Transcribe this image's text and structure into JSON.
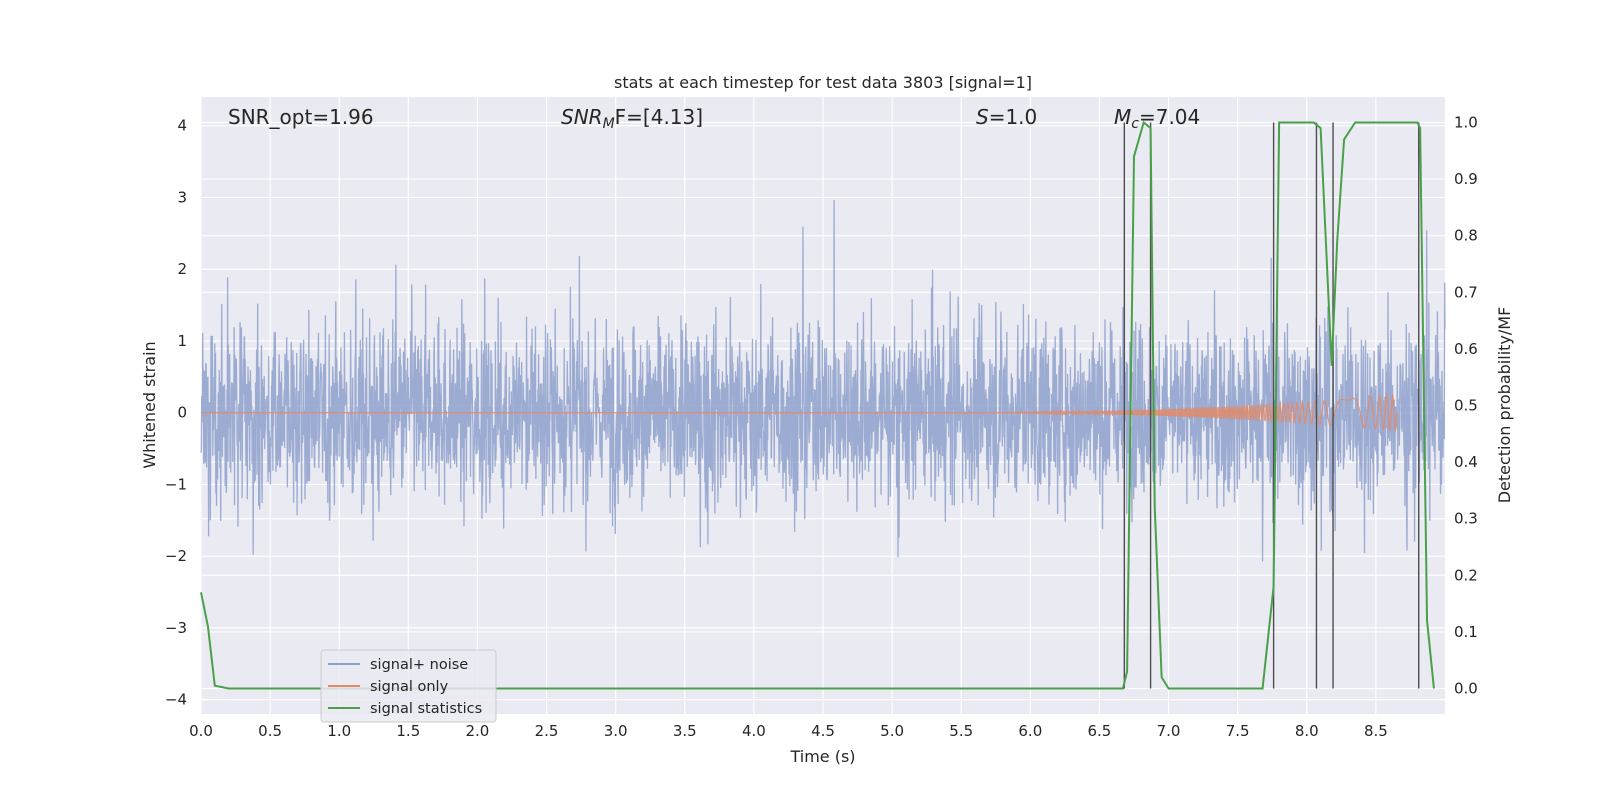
{
  "chart_data": {
    "type": "line",
    "title": "stats at each timestep for test data 3803 [signal=1]",
    "xlabel": "Time (s)",
    "ylabel_left": "Whitened strain",
    "ylabel_right": "Detection probability/MF",
    "xlim": [
      0.0,
      9.0
    ],
    "ylim_left": [
      -4.2,
      4.4
    ],
    "ylim_right": [
      -0.045,
      1.045
    ],
    "x_ticks": [
      "0.0",
      "0.5",
      "1.0",
      "1.5",
      "2.0",
      "2.5",
      "3.0",
      "3.5",
      "4.0",
      "4.5",
      "5.0",
      "5.5",
      "6.0",
      "6.5",
      "7.0",
      "7.5",
      "8.0",
      "8.5"
    ],
    "x_tick_values": [
      0.0,
      0.5,
      1.0,
      1.5,
      2.0,
      2.5,
      3.0,
      3.5,
      4.0,
      4.5,
      5.0,
      5.5,
      6.0,
      6.5,
      7.0,
      7.5,
      8.0,
      8.5
    ],
    "y_left_ticks": [
      "4",
      "3",
      "2",
      "1",
      "0",
      "−1",
      "−2",
      "−3",
      "−4"
    ],
    "y_left_tick_values": [
      4,
      3,
      2,
      1,
      0,
      -1,
      -2,
      -3,
      -4
    ],
    "y_right_ticks": [
      "1.0",
      "0.9",
      "0.8",
      "0.7",
      "0.6",
      "0.5",
      "0.4",
      "0.3",
      "0.2",
      "0.1",
      "0.0"
    ],
    "y_right_tick_values": [
      1.0,
      0.9,
      0.8,
      0.7,
      0.6,
      0.5,
      0.4,
      0.3,
      0.2,
      0.1,
      0.0
    ],
    "grid": true,
    "legend_position": "lower-left",
    "annotations": {
      "snr_opt": "SNR_opt=1.96",
      "snr_mf_base": "SNR",
      "snr_mf_sub": "M",
      "snr_mf_rest": "F=[4.13]",
      "s_italic": "S",
      "s_rest": "=1.0",
      "mc_italic": "M",
      "mc_sub": "c",
      "mc_rest": "=7.04"
    },
    "series": [
      {
        "name": "signal+ noise",
        "color": "#8da0cb",
        "axis": "left",
        "description": "whitened strain noise, amplitude envelope roughly ±1.7 with spikes to ±3.5"
      },
      {
        "name": "signal only",
        "color": "#e08a6a",
        "axis": "left",
        "chirp": {
          "start": 5.5,
          "end": 8.65,
          "max_amplitude": 0.25
        }
      },
      {
        "name": "signal statistics",
        "color": "#4aa04a",
        "axis": "right",
        "x": [
          0.0,
          0.05,
          0.1,
          0.2,
          1.0,
          2.0,
          3.0,
          4.0,
          5.0,
          5.5,
          6.0,
          6.5,
          6.67,
          6.7,
          6.75,
          6.82,
          6.87,
          6.9,
          6.95,
          7.0,
          7.5,
          7.68,
          7.76,
          7.8,
          8.0,
          8.05,
          8.1,
          8.18,
          8.22,
          8.27,
          8.35,
          8.5,
          8.7,
          8.8,
          8.82,
          8.87,
          8.92
        ],
        "y": [
          0.17,
          0.11,
          0.005,
          0.0,
          0.0,
          0.0,
          0.0,
          0.0,
          0.0,
          0.0,
          0.0,
          0.0,
          0.0,
          0.03,
          0.94,
          1.0,
          0.99,
          0.32,
          0.02,
          0.0,
          0.0,
          0.0,
          0.18,
          1.0,
          1.0,
          1.0,
          0.99,
          0.57,
          0.79,
          0.97,
          1.0,
          1.0,
          1.0,
          1.0,
          0.99,
          0.12,
          0.0
        ]
      }
    ],
    "vertical_lines": {
      "color": "#4d4d4d",
      "x": [
        6.68,
        6.87,
        7.76,
        8.07,
        8.19,
        8.81
      ]
    }
  }
}
